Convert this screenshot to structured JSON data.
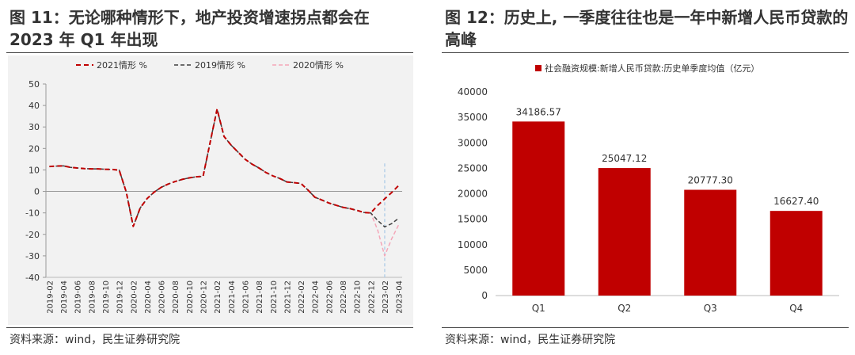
{
  "left": {
    "title": "图 11：无论哪种情形下，地产投资增速拐点都会在 2023 年 Q1 年出现",
    "source": "资料来源：wind，民生证券研究院"
  },
  "right": {
    "title": "图 12：历史上, 一季度往往也是一年中新增人民币贷款的高峰",
    "source": "资料来源：wind，民生证券研究院"
  },
  "colors": {
    "bar": "#c00000",
    "line2021": "#c00000",
    "line2019": "#404040",
    "line2020": "#f4a6b8",
    "vline": "#a9c9e6",
    "panel_bg": "#f2f2f2"
  },
  "chart_data": [
    {
      "type": "line",
      "title": "",
      "xlabel": "",
      "ylabel": "",
      "ylim": [
        -40,
        50
      ],
      "yticks": [
        50,
        40,
        30,
        20,
        10,
        0,
        -10,
        -20,
        -30,
        -40
      ],
      "grid": false,
      "legend_position": "top",
      "x": [
        "2019-02",
        "2019-03",
        "2019-04",
        "2019-05",
        "2019-06",
        "2019-07",
        "2019-08",
        "2019-09",
        "2019-10",
        "2019-11",
        "2019-12",
        "2020-01",
        "2020-02",
        "2020-03",
        "2020-04",
        "2020-05",
        "2020-06",
        "2020-07",
        "2020-08",
        "2020-09",
        "2020-10",
        "2020-11",
        "2020-12",
        "2021-01",
        "2021-02",
        "2021-03",
        "2021-04",
        "2021-05",
        "2021-06",
        "2021-07",
        "2021-08",
        "2021-09",
        "2021-10",
        "2021-11",
        "2021-12",
        "2022-01",
        "2022-02",
        "2022-03",
        "2022-04",
        "2022-05",
        "2022-06",
        "2022-07",
        "2022-08",
        "2022-09",
        "2022-10",
        "2022-11",
        "2022-12",
        "2023-01",
        "2023-02",
        "2023-03",
        "2023-04"
      ],
      "xticks": [
        "2019-02",
        "2019-04",
        "2019-06",
        "2019-08",
        "2019-10",
        "2019-12",
        "2020-02",
        "2020-04",
        "2020-06",
        "2020-08",
        "2020-10",
        "2020-12",
        "2021-02",
        "2021-04",
        "2021-06",
        "2021-08",
        "2021-10",
        "2021-12",
        "2022-02",
        "2022-04",
        "2022-06",
        "2022-08",
        "2022-10",
        "2022-12",
        "2023-02",
        "2023-04"
      ],
      "vline_at": "2023-02",
      "series": [
        {
          "name": "2021情形 %",
          "style": "dashed-bold",
          "values": [
            11.6,
            11.8,
            11.9,
            11.2,
            10.9,
            10.6,
            10.5,
            10.5,
            10.3,
            10.2,
            9.9,
            -0.3,
            -16.3,
            -7.7,
            -3.3,
            -0.3,
            1.9,
            3.4,
            4.6,
            5.6,
            6.3,
            6.8,
            7.0,
            null,
            38.3,
            25.6,
            21.6,
            18.3,
            15.0,
            12.7,
            10.9,
            8.8,
            7.2,
            6.0,
            4.4,
            null,
            3.7,
            0.7,
            -2.7,
            -4.0,
            -5.4,
            -6.4,
            -7.4,
            -8.0,
            -8.8,
            -9.8,
            -10.0,
            -6.5,
            -3.5,
            -0.5,
            2.8
          ]
        },
        {
          "name": "2019情形 %",
          "style": "dashed",
          "values": [
            11.6,
            11.8,
            11.9,
            11.2,
            10.9,
            10.6,
            10.5,
            10.5,
            10.3,
            10.2,
            9.9,
            -0.3,
            -16.3,
            -7.7,
            -3.3,
            -0.3,
            1.9,
            3.4,
            4.6,
            5.6,
            6.3,
            6.8,
            7.0,
            null,
            38.3,
            25.6,
            21.6,
            18.3,
            15.0,
            12.7,
            10.9,
            8.8,
            7.2,
            6.0,
            4.4,
            null,
            3.7,
            0.7,
            -2.7,
            -4.0,
            -5.4,
            -6.4,
            -7.4,
            -8.0,
            -8.8,
            -9.8,
            -10.0,
            -13.5,
            -16.5,
            -15.0,
            -12.5
          ]
        },
        {
          "name": "2020情形 %",
          "style": "dashed-light",
          "values": [
            11.6,
            11.8,
            11.9,
            11.2,
            10.9,
            10.6,
            10.5,
            10.5,
            10.3,
            10.2,
            9.9,
            -0.3,
            -16.3,
            -7.7,
            -3.3,
            -0.3,
            1.9,
            3.4,
            4.6,
            5.6,
            6.3,
            6.8,
            7.0,
            null,
            38.3,
            25.6,
            21.6,
            18.3,
            15.0,
            12.7,
            10.9,
            8.8,
            7.2,
            6.0,
            4.4,
            null,
            3.7,
            0.7,
            -2.7,
            -4.0,
            -5.4,
            -6.4,
            -7.4,
            -8.0,
            -8.8,
            -9.8,
            -10.0,
            -18.0,
            -30.0,
            -22.0,
            -15.5
          ]
        }
      ]
    },
    {
      "type": "bar",
      "title": "",
      "xlabel": "",
      "ylabel": "",
      "ylim": [
        0,
        40000
      ],
      "yticks": [
        40000,
        35000,
        30000,
        25000,
        20000,
        15000,
        10000,
        5000,
        0
      ],
      "grid": false,
      "legend_position": "top",
      "categories": [
        "Q1",
        "Q2",
        "Q3",
        "Q4"
      ],
      "series": [
        {
          "name": "社会融资规模:新增人民币贷款:历史单季度均值（亿元）",
          "values": [
            34186.57,
            25047.12,
            20777.3,
            16627.4
          ]
        }
      ],
      "data_labels": [
        "34186.57",
        "25047.12",
        "20777.30",
        "16627.40"
      ]
    }
  ]
}
